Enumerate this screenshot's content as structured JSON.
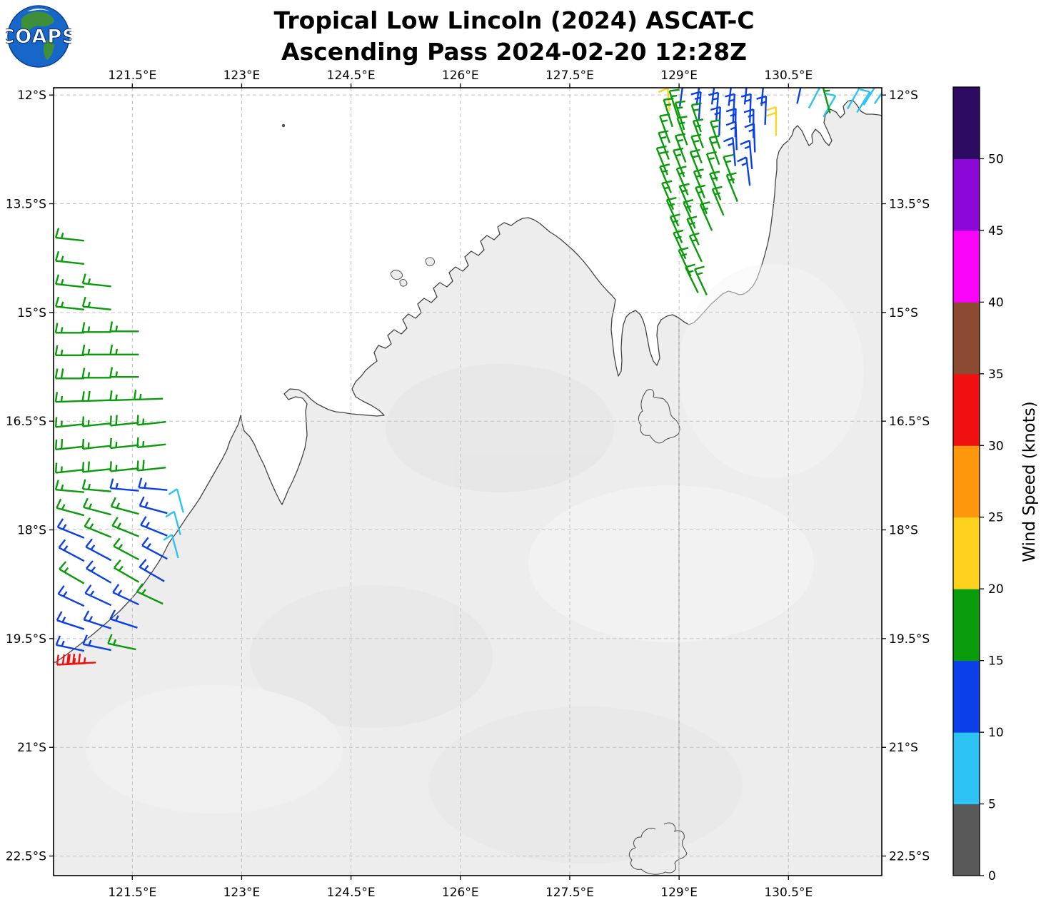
{
  "header": {
    "logo_text": "COAPS",
    "title_line1": "Tropical Low Lincoln (2024) ASCAT-C",
    "title_line2": "Ascending Pass 2024-02-20 12:28Z"
  },
  "map": {
    "x_ticks": [
      {
        "label": "121.5°E",
        "lon": 121.5
      },
      {
        "label": "123°E",
        "lon": 123.0
      },
      {
        "label": "124.5°E",
        "lon": 124.5
      },
      {
        "label": "126°E",
        "lon": 126.0
      },
      {
        "label": "127.5°E",
        "lon": 127.5
      },
      {
        "label": "129°E",
        "lon": 129.0
      },
      {
        "label": "130.5°E",
        "lon": 130.5
      }
    ],
    "y_ticks": [
      {
        "label": "12°S",
        "lat": 12.0
      },
      {
        "label": "13.5°S",
        "lat": 13.5
      },
      {
        "label": "15°S",
        "lat": 15.0
      },
      {
        "label": "16.5°S",
        "lat": 16.5
      },
      {
        "label": "18°S",
        "lat": 18.0
      },
      {
        "label": "19.5°S",
        "lat": 19.5
      },
      {
        "label": "21°S",
        "lat": 21.0
      },
      {
        "label": "22.5°S",
        "lat": 22.5
      }
    ]
  },
  "colorbar": {
    "label": "Wind Speed (knots)",
    "tick_labels": [
      "0",
      "5",
      "10",
      "15",
      "20",
      "25",
      "30",
      "35",
      "40",
      "45",
      "50"
    ],
    "bins": [
      {
        "min": 0,
        "max": 5,
        "color": "#595959"
      },
      {
        "min": 5,
        "max": 10,
        "color": "#2cc3f4"
      },
      {
        "min": 10,
        "max": 15,
        "color": "#0b40e8"
      },
      {
        "min": 15,
        "max": 20,
        "color": "#0a9b0a"
      },
      {
        "min": 20,
        "max": 25,
        "color": "#ffd21e"
      },
      {
        "min": 25,
        "max": 30,
        "color": "#ff970d"
      },
      {
        "min": 30,
        "max": 35,
        "color": "#f01010"
      },
      {
        "min": 35,
        "max": 40,
        "color": "#8c4a32"
      },
      {
        "min": 40,
        "max": 45,
        "color": "#f903f9"
      },
      {
        "min": 45,
        "max": 50,
        "color": "#8b07d8"
      },
      {
        "min": 50,
        "max": 55,
        "color": "#2e0b63"
      }
    ]
  },
  "chart_data": {
    "type": "wind_barb_map",
    "title": "Tropical Low Lincoln (2024) ASCAT-C",
    "subtitle": "Ascending Pass 2024-02-20 12:28Z",
    "units": "knots",
    "lon_range": [
      120.42,
      131.78
    ],
    "lat_range_south": [
      11.9,
      22.77
    ],
    "barb_legend": {
      "half_barb_kt": 5,
      "full_barb_kt": 10
    },
    "barb_fields": [
      "lon_E",
      "lat_S",
      "speed_kt",
      "staff_angle_deg_ccw_from_east",
      "tick_side_flipped"
    ],
    "barbs": [
      [
        120.84,
        14.01,
        17,
        174
      ],
      [
        120.84,
        14.33,
        17,
        174
      ],
      [
        120.84,
        14.65,
        17,
        174
      ],
      [
        121.21,
        14.64,
        17,
        174
      ],
      [
        120.84,
        14.96,
        17,
        174
      ],
      [
        121.21,
        14.96,
        17,
        174
      ],
      [
        120.84,
        15.28,
        17,
        180
      ],
      [
        121.21,
        15.27,
        17,
        180
      ],
      [
        121.59,
        15.26,
        17,
        180
      ],
      [
        120.84,
        15.59,
        17,
        180
      ],
      [
        121.21,
        15.58,
        17,
        180
      ],
      [
        121.59,
        15.58,
        17,
        180
      ],
      [
        120.84,
        15.91,
        19,
        180
      ],
      [
        121.21,
        15.9,
        17,
        180
      ],
      [
        121.59,
        15.89,
        17,
        180
      ],
      [
        120.84,
        16.22,
        17,
        182
      ],
      [
        121.21,
        16.21,
        19,
        182
      ],
      [
        121.59,
        16.2,
        17,
        182
      ],
      [
        121.92,
        16.19,
        17,
        182
      ],
      [
        120.84,
        16.54,
        17,
        186
      ],
      [
        121.21,
        16.53,
        17,
        186
      ],
      [
        121.59,
        16.52,
        19,
        186
      ],
      [
        121.96,
        16.51,
        17,
        186
      ],
      [
        120.84,
        16.85,
        19,
        186
      ],
      [
        121.21,
        16.84,
        17,
        186
      ],
      [
        121.59,
        16.83,
        17,
        186
      ],
      [
        121.96,
        16.82,
        17,
        186
      ],
      [
        120.84,
        17.17,
        17,
        186
      ],
      [
        121.21,
        17.16,
        19,
        186
      ],
      [
        121.59,
        17.15,
        17,
        186
      ],
      [
        121.96,
        17.14,
        19,
        186
      ],
      [
        120.84,
        17.48,
        17,
        175
      ],
      [
        121.21,
        17.47,
        17,
        175
      ],
      [
        121.59,
        17.46,
        13,
        175
      ],
      [
        121.98,
        17.45,
        13,
        175
      ],
      [
        120.84,
        17.8,
        17,
        165
      ],
      [
        121.21,
        17.79,
        17,
        165
      ],
      [
        121.59,
        17.78,
        17,
        165
      ],
      [
        121.98,
        17.77,
        13,
        165
      ],
      [
        122.2,
        17.76,
        9,
        105,
        1
      ],
      [
        120.84,
        18.11,
        13,
        158
      ],
      [
        121.21,
        18.1,
        17,
        158
      ],
      [
        121.59,
        18.09,
        17,
        158
      ],
      [
        121.98,
        18.08,
        13,
        158
      ],
      [
        122.16,
        18.07,
        9,
        105,
        1
      ],
      [
        120.84,
        18.43,
        13,
        152
      ],
      [
        121.21,
        18.42,
        13,
        152
      ],
      [
        121.59,
        18.41,
        17,
        152
      ],
      [
        121.98,
        18.4,
        13,
        152
      ],
      [
        122.13,
        18.39,
        9,
        105,
        1
      ],
      [
        120.84,
        18.74,
        17,
        150
      ],
      [
        121.21,
        18.73,
        13,
        150
      ],
      [
        121.59,
        18.72,
        17,
        150
      ],
      [
        121.94,
        18.71,
        13,
        150
      ],
      [
        120.84,
        19.05,
        13,
        155
      ],
      [
        121.21,
        19.04,
        13,
        155
      ],
      [
        121.59,
        19.03,
        13,
        155
      ],
      [
        121.92,
        19.02,
        17,
        155
      ],
      [
        120.84,
        19.37,
        13,
        162
      ],
      [
        121.21,
        19.36,
        13,
        162
      ],
      [
        121.57,
        19.35,
        13,
        162
      ],
      [
        120.84,
        19.67,
        13,
        168
      ],
      [
        121.21,
        19.66,
        13,
        168
      ],
      [
        121.55,
        19.65,
        17,
        168
      ],
      [
        120.86,
        19.84,
        33,
        183
      ],
      [
        121.0,
        19.83,
        33,
        183
      ],
      [
        129.01,
        12.16,
        13,
        82,
        1
      ],
      [
        129.24,
        12.14,
        13,
        82,
        1
      ],
      [
        129.45,
        12.13,
        13,
        83,
        1
      ],
      [
        129.68,
        12.15,
        13,
        83,
        1
      ],
      [
        129.9,
        12.13,
        13,
        84,
        1
      ],
      [
        130.13,
        12.15,
        13,
        85,
        1
      ],
      [
        130.62,
        12.12,
        13,
        78,
        1
      ],
      [
        130.78,
        12.18,
        9,
        62,
        1
      ],
      [
        131.31,
        12.19,
        9,
        60,
        1
      ],
      [
        131.53,
        12.14,
        9,
        58,
        1
      ],
      [
        131.68,
        12.12,
        9,
        55,
        1
      ],
      [
        128.87,
        12.22,
        22,
        95,
        1
      ],
      [
        128.99,
        12.32,
        17,
        108
      ],
      [
        129.27,
        12.35,
        13,
        86,
        1
      ],
      [
        129.51,
        12.36,
        13,
        86,
        1
      ],
      [
        129.74,
        12.38,
        13,
        87,
        1
      ],
      [
        129.97,
        12.38,
        13,
        88,
        1
      ],
      [
        130.18,
        12.41,
        13,
        88,
        1
      ],
      [
        130.98,
        12.3,
        9,
        60,
        1
      ],
      [
        131.07,
        12.25,
        17,
        105
      ],
      [
        131.44,
        12.24,
        9,
        58,
        1
      ],
      [
        128.91,
        12.44,
        17,
        108
      ],
      [
        129.07,
        12.48,
        17,
        108
      ],
      [
        129.3,
        12.51,
        17,
        109
      ],
      [
        129.55,
        12.56,
        13,
        88,
        1
      ],
      [
        129.77,
        12.58,
        13,
        89,
        1
      ],
      [
        130.02,
        12.59,
        13,
        90,
        1
      ],
      [
        130.33,
        12.56,
        22,
        90,
        1
      ],
      [
        128.87,
        12.66,
        17,
        110
      ],
      [
        129.11,
        12.69,
        17,
        110
      ],
      [
        129.33,
        12.73,
        17,
        110
      ],
      [
        129.56,
        12.74,
        17,
        109
      ],
      [
        129.79,
        12.76,
        13,
        92,
        1
      ],
      [
        130.04,
        12.79,
        13,
        92,
        1
      ],
      [
        128.86,
        12.89,
        17,
        111
      ],
      [
        129.09,
        12.93,
        17,
        111
      ],
      [
        129.31,
        12.94,
        17,
        111
      ],
      [
        129.55,
        12.96,
        17,
        110
      ],
      [
        129.77,
        12.98,
        13,
        95,
        1
      ],
      [
        130.0,
        13.02,
        13,
        95,
        1
      ],
      [
        128.84,
        13.1,
        19,
        112
      ],
      [
        129.07,
        13.13,
        17,
        112
      ],
      [
        129.3,
        13.15,
        17,
        112
      ],
      [
        129.52,
        13.18,
        17,
        111
      ],
      [
        129.75,
        13.22,
        17,
        111
      ],
      [
        129.97,
        13.25,
        13,
        97,
        1
      ],
      [
        128.89,
        13.35,
        17,
        113
      ],
      [
        129.12,
        13.38,
        17,
        113
      ],
      [
        129.35,
        13.42,
        17,
        112
      ],
      [
        129.57,
        13.45,
        17,
        112
      ],
      [
        129.8,
        13.47,
        17,
        112
      ],
      [
        128.92,
        13.58,
        17,
        113
      ],
      [
        129.16,
        13.62,
        17,
        113
      ],
      [
        129.38,
        13.64,
        17,
        113
      ],
      [
        129.61,
        13.66,
        17,
        113
      ],
      [
        128.99,
        13.81,
        17,
        114
      ],
      [
        129.22,
        13.84,
        17,
        114
      ],
      [
        129.45,
        13.87,
        17,
        114
      ],
      [
        129.04,
        14.04,
        17,
        114
      ],
      [
        129.27,
        14.07,
        17,
        114
      ],
      [
        129.09,
        14.26,
        17,
        115
      ],
      [
        129.31,
        14.3,
        17,
        115
      ],
      [
        129.16,
        14.5,
        17,
        115
      ],
      [
        129.26,
        14.73,
        17,
        116
      ],
      [
        129.38,
        14.76,
        17,
        115
      ]
    ]
  }
}
